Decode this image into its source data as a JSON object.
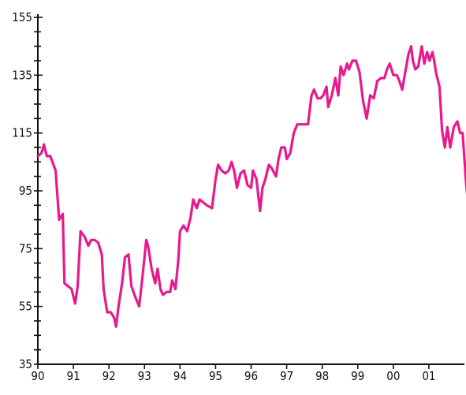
{
  "chart_data": {
    "type": "line",
    "title": "",
    "xlabel": "",
    "ylabel": "",
    "ylim": [
      35,
      155
    ],
    "xlim": [
      1990,
      2002
    ],
    "y_ticks": [
      35,
      55,
      75,
      95,
      115,
      135,
      155
    ],
    "y_minor_step": 5,
    "x_ticks": [
      {
        "value": 1990,
        "label": "90"
      },
      {
        "value": 1991,
        "label": "91"
      },
      {
        "value": 1992,
        "label": "92"
      },
      {
        "value": 1993,
        "label": "93"
      },
      {
        "value": 1994,
        "label": "94"
      },
      {
        "value": 1995,
        "label": "95"
      },
      {
        "value": 1996,
        "label": "96"
      },
      {
        "value": 1997,
        "label": "97"
      },
      {
        "value": 1998,
        "label": "98"
      },
      {
        "value": 1999,
        "label": "99"
      },
      {
        "value": 2000,
        "label": "00"
      },
      {
        "value": 2001,
        "label": "01"
      }
    ],
    "grid": false,
    "legend": "none",
    "series": [
      {
        "color": "#e8198b",
        "points": [
          [
            1990.0,
            107
          ],
          [
            1990.1,
            108
          ],
          [
            1990.17,
            111
          ],
          [
            1990.25,
            107
          ],
          [
            1990.35,
            107
          ],
          [
            1990.5,
            102
          ],
          [
            1990.6,
            85
          ],
          [
            1990.7,
            87
          ],
          [
            1990.75,
            63
          ],
          [
            1990.85,
            62
          ],
          [
            1990.95,
            61
          ],
          [
            1991.05,
            56
          ],
          [
            1991.12,
            62
          ],
          [
            1991.2,
            81
          ],
          [
            1991.32,
            79
          ],
          [
            1991.42,
            76
          ],
          [
            1991.5,
            78
          ],
          [
            1991.6,
            78
          ],
          [
            1991.7,
            77
          ],
          [
            1991.8,
            73
          ],
          [
            1991.85,
            61
          ],
          [
            1991.95,
            53
          ],
          [
            1992.05,
            53
          ],
          [
            1992.15,
            51
          ],
          [
            1992.2,
            48
          ],
          [
            1992.27,
            55
          ],
          [
            1992.37,
            63
          ],
          [
            1992.45,
            72
          ],
          [
            1992.55,
            73
          ],
          [
            1992.63,
            62
          ],
          [
            1992.75,
            58
          ],
          [
            1992.85,
            55
          ],
          [
            1992.95,
            66
          ],
          [
            1993.05,
            78
          ],
          [
            1993.1,
            76
          ],
          [
            1993.2,
            68
          ],
          [
            1993.3,
            63
          ],
          [
            1993.37,
            68
          ],
          [
            1993.45,
            61
          ],
          [
            1993.52,
            59
          ],
          [
            1993.62,
            60
          ],
          [
            1993.72,
            60
          ],
          [
            1993.78,
            64
          ],
          [
            1993.87,
            61
          ],
          [
            1993.95,
            71
          ],
          [
            1994.0,
            81
          ],
          [
            1994.1,
            83
          ],
          [
            1994.2,
            81
          ],
          [
            1994.3,
            86
          ],
          [
            1994.37,
            92
          ],
          [
            1994.47,
            89
          ],
          [
            1994.55,
            92
          ],
          [
            1994.65,
            91
          ],
          [
            1994.75,
            90
          ],
          [
            1994.9,
            89
          ],
          [
            1995.0,
            99
          ],
          [
            1995.07,
            104
          ],
          [
            1995.17,
            102
          ],
          [
            1995.27,
            101
          ],
          [
            1995.37,
            102
          ],
          [
            1995.45,
            105
          ],
          [
            1995.52,
            102
          ],
          [
            1995.6,
            96
          ],
          [
            1995.7,
            101
          ],
          [
            1995.8,
            102
          ],
          [
            1995.9,
            97
          ],
          [
            1996.0,
            96
          ],
          [
            1996.05,
            102
          ],
          [
            1996.15,
            99
          ],
          [
            1996.25,
            88
          ],
          [
            1996.32,
            96
          ],
          [
            1996.4,
            99
          ],
          [
            1996.5,
            104
          ],
          [
            1996.57,
            103
          ],
          [
            1996.7,
            100
          ],
          [
            1996.77,
            106
          ],
          [
            1996.85,
            110
          ],
          [
            1996.95,
            110
          ],
          [
            1997.0,
            106
          ],
          [
            1997.1,
            108
          ],
          [
            1997.2,
            115
          ],
          [
            1997.3,
            118
          ],
          [
            1997.4,
            118
          ],
          [
            1997.5,
            118
          ],
          [
            1997.6,
            118
          ],
          [
            1997.7,
            128
          ],
          [
            1997.77,
            130
          ],
          [
            1997.87,
            127
          ],
          [
            1997.95,
            127
          ],
          [
            1998.03,
            128
          ],
          [
            1998.12,
            131
          ],
          [
            1998.17,
            124
          ],
          [
            1998.27,
            128
          ],
          [
            1998.37,
            134
          ],
          [
            1998.45,
            128
          ],
          [
            1998.52,
            138
          ],
          [
            1998.6,
            135
          ],
          [
            1998.7,
            139
          ],
          [
            1998.75,
            137
          ],
          [
            1998.85,
            140
          ],
          [
            1998.95,
            140
          ],
          [
            1999.05,
            136
          ],
          [
            1999.15,
            126
          ],
          [
            1999.25,
            120
          ],
          [
            1999.35,
            128
          ],
          [
            1999.45,
            127
          ],
          [
            1999.55,
            133
          ],
          [
            1999.65,
            134
          ],
          [
            1999.75,
            134
          ],
          [
            1999.82,
            137
          ],
          [
            1999.9,
            139
          ],
          [
            2000.0,
            135
          ],
          [
            2000.1,
            135
          ],
          [
            2000.17,
            133
          ],
          [
            2000.25,
            130
          ],
          [
            2000.35,
            137
          ],
          [
            2000.42,
            142
          ],
          [
            2000.5,
            145
          ],
          [
            2000.55,
            140
          ],
          [
            2000.62,
            137
          ],
          [
            2000.7,
            138
          ],
          [
            2000.8,
            145
          ],
          [
            2000.87,
            139
          ],
          [
            2000.95,
            143
          ],
          [
            2001.02,
            140
          ],
          [
            2001.1,
            143
          ],
          [
            2001.15,
            140
          ],
          [
            2001.2,
            136
          ],
          [
            2001.3,
            131
          ],
          [
            2001.37,
            116
          ],
          [
            2001.45,
            110
          ],
          [
            2001.52,
            117
          ],
          [
            2001.6,
            110
          ],
          [
            2001.7,
            117
          ],
          [
            2001.8,
            119
          ],
          [
            2001.88,
            115
          ],
          [
            2001.95,
            115
          ],
          [
            2002.05,
            97
          ],
          [
            2002.15,
            85
          ],
          [
            2002.22,
            85
          ],
          [
            2002.3,
            94
          ]
        ]
      }
    ]
  }
}
